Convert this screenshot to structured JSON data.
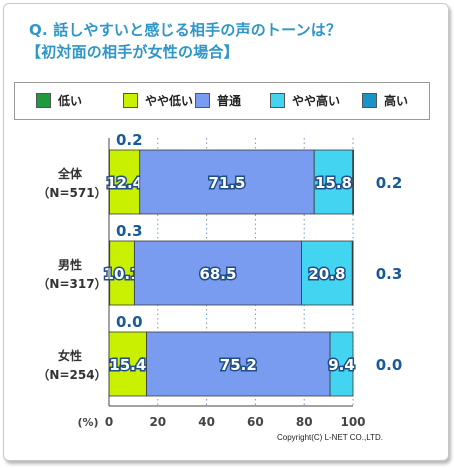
{
  "title_line1": "Q. 話しやすいと感じる相手の声のトーンは？",
  "title_line2": "【初対面の相手が女性の場合】",
  "legend": [
    {
      "label": "低い",
      "color": "#1f9a3c"
    },
    {
      "label": "やや低い",
      "color": "#c8f000"
    },
    {
      "label": "普通",
      "color": "#7a9cf0"
    },
    {
      "label": "やや高い",
      "color": "#42d4f0"
    },
    {
      "label": "高い",
      "color": "#1a94c8"
    }
  ],
  "copyright": "Copyright(C) L-NET CO.,LTD.",
  "chart_data": {
    "type": "bar",
    "orientation": "horizontal",
    "stacked": true,
    "categories": [
      [
        "全体",
        "（N=571）"
      ],
      [
        "男性",
        "（N=317）"
      ],
      [
        "女性",
        "（N=254）"
      ]
    ],
    "series": [
      {
        "name": "低い",
        "values": [
          0.2,
          0.3,
          0.0
        ],
        "color": "#1f9a3c"
      },
      {
        "name": "やや低い",
        "values": [
          12.4,
          10.1,
          15.4
        ],
        "color": "#c8f000"
      },
      {
        "name": "普通",
        "values": [
          71.5,
          68.5,
          75.2
        ],
        "color": "#7a9cf0"
      },
      {
        "name": "やや高い",
        "values": [
          15.8,
          20.8,
          9.4
        ],
        "color": "#42d4f0"
      },
      {
        "name": "高い",
        "values": [
          0.2,
          0.3,
          0.0
        ],
        "color": "#1a94c8"
      }
    ],
    "xlim": [
      0,
      100
    ],
    "xticks": [
      0,
      20,
      40,
      60,
      80,
      100
    ],
    "xunit": "(%)",
    "grid": "x-dotted",
    "legend_position": "top"
  }
}
